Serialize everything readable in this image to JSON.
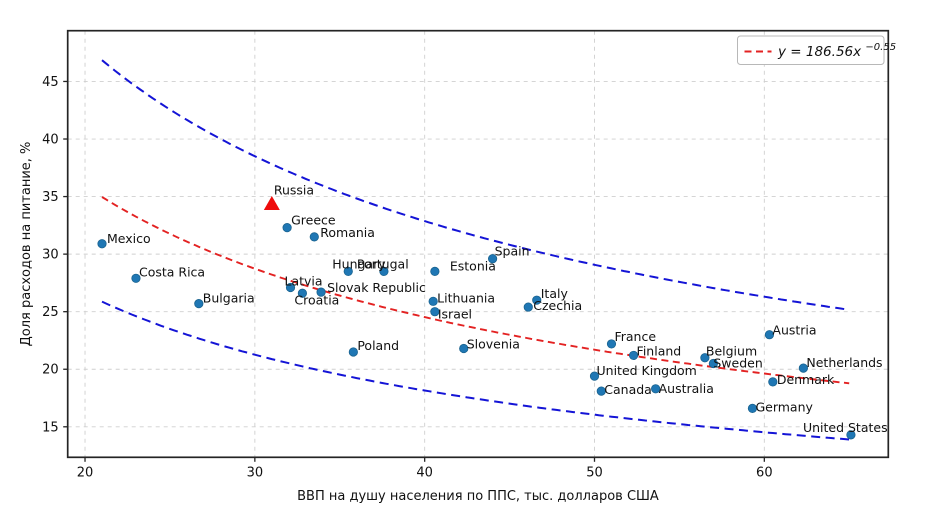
{
  "colors": {
    "point": "#1f77b4",
    "point_edge": "#1a638f",
    "highlight": "#ee0b0b",
    "trend": "#e32222",
    "band": "#1414d6",
    "grid": "#cfcfcf",
    "axis": "#242424",
    "text": "#111111"
  },
  "chart_data": {
    "type": "scatter",
    "title": "",
    "xlabel": "ВВП на душу населения по ППС, тыс. долларов США",
    "ylabel": "Доля расходов на питание, %",
    "xlim": [
      18.98,
      67.3
    ],
    "ylim": [
      12.35,
      49.41
    ],
    "x_ticks": [
      20,
      30,
      40,
      50,
      60
    ],
    "y_ticks": [
      15,
      20,
      25,
      30,
      35,
      40,
      45
    ],
    "grid": true,
    "legend_position": "upper right",
    "trend": {
      "type": "power",
      "a": 186.56,
      "b": -0.55,
      "x_start": 21,
      "x_end": 65,
      "legend_prefix": "y = 186.56x",
      "legend_exponent": "−0.55"
    },
    "bands": {
      "upper_factor": 1.34,
      "lower_factor": 0.74
    },
    "points": [
      {
        "label": "Mexico",
        "x": 21.0,
        "y": 30.9,
        "marker": "circle",
        "label_offset": [
          5,
          -1
        ],
        "anchor": "start"
      },
      {
        "label": "Costa Rica",
        "x": 23.0,
        "y": 27.9,
        "marker": "circle",
        "label_offset": [
          3,
          -2
        ],
        "anchor": "start"
      },
      {
        "label": "Bulgaria",
        "x": 26.7,
        "y": 25.7,
        "marker": "circle",
        "label_offset": [
          4,
          -1
        ],
        "anchor": "start"
      },
      {
        "label": "Russia",
        "x": 31.0,
        "y": 34.4,
        "marker": "triangle",
        "label_offset": [
          2,
          -9
        ],
        "anchor": "start"
      },
      {
        "label": "Greece",
        "x": 31.9,
        "y": 32.3,
        "marker": "circle",
        "label_offset": [
          4,
          -3
        ],
        "anchor": "start"
      },
      {
        "label": "Romania",
        "x": 33.5,
        "y": 31.5,
        "marker": "circle",
        "label_offset": [
          6,
          0
        ],
        "anchor": "start"
      },
      {
        "label": "Latvia",
        "x": 32.1,
        "y": 27.1,
        "marker": "circle",
        "label_offset": [
          -6,
          -2
        ],
        "anchor": "start"
      },
      {
        "label": "Croatia",
        "x": 32.8,
        "y": 26.6,
        "marker": "circle",
        "label_offset": [
          -8,
          11
        ],
        "anchor": "start"
      },
      {
        "label": "Slovak Republic",
        "x": 33.9,
        "y": 26.7,
        "marker": "circle",
        "label_offset": [
          6,
          0
        ],
        "anchor": "start"
      },
      {
        "label": "Hungary",
        "x": 35.5,
        "y": 28.5,
        "marker": "circle",
        "label_offset": [
          -16,
          -3
        ],
        "anchor": "start"
      },
      {
        "label": "Portugal",
        "x": 37.6,
        "y": 28.5,
        "marker": "circle",
        "label_offset": [
          -27,
          -3
        ],
        "anchor": "start"
      },
      {
        "label": "Estonia",
        "x": 40.6,
        "y": 28.5,
        "marker": "circle",
        "label_offset": [
          15,
          -1
        ],
        "anchor": "start"
      },
      {
        "label": "Spain",
        "x": 44.0,
        "y": 29.6,
        "marker": "circle",
        "label_offset": [
          2,
          -3
        ],
        "anchor": "start"
      },
      {
        "label": "Lithuania",
        "x": 40.5,
        "y": 25.9,
        "marker": "circle",
        "label_offset": [
          4,
          1
        ],
        "anchor": "start"
      },
      {
        "label": "Israel",
        "x": 40.6,
        "y": 25.0,
        "marker": "circle",
        "label_offset": [
          3,
          7
        ],
        "anchor": "start"
      },
      {
        "label": "Italy",
        "x": 46.6,
        "y": 26.0,
        "marker": "circle",
        "label_offset": [
          4,
          -2
        ],
        "anchor": "start"
      },
      {
        "label": "Czechia",
        "x": 46.1,
        "y": 25.4,
        "marker": "circle",
        "label_offset": [
          5,
          3
        ],
        "anchor": "start"
      },
      {
        "label": "Poland",
        "x": 35.8,
        "y": 21.5,
        "marker": "circle",
        "label_offset": [
          4,
          -2
        ],
        "anchor": "start"
      },
      {
        "label": "Slovenia",
        "x": 42.3,
        "y": 21.8,
        "marker": "circle",
        "label_offset": [
          3,
          0
        ],
        "anchor": "start"
      },
      {
        "label": "France",
        "x": 51.0,
        "y": 22.2,
        "marker": "circle",
        "label_offset": [
          3,
          -3
        ],
        "anchor": "start"
      },
      {
        "label": "Finland",
        "x": 52.3,
        "y": 21.2,
        "marker": "circle",
        "label_offset": [
          3,
          0
        ],
        "anchor": "start"
      },
      {
        "label": "United Kingdom",
        "x": 50.0,
        "y": 19.4,
        "marker": "circle",
        "label_offset": [
          2,
          -1
        ],
        "anchor": "start"
      },
      {
        "label": "Canada",
        "x": 50.4,
        "y": 18.1,
        "marker": "circle",
        "label_offset": [
          3,
          3
        ],
        "anchor": "start"
      },
      {
        "label": "Australia",
        "x": 53.6,
        "y": 18.3,
        "marker": "circle",
        "label_offset": [
          3,
          4
        ],
        "anchor": "start"
      },
      {
        "label": "Belgium",
        "x": 56.5,
        "y": 21.0,
        "marker": "circle",
        "label_offset": [
          1,
          -2
        ],
        "anchor": "start"
      },
      {
        "label": "Sweden",
        "x": 57.0,
        "y": 20.5,
        "marker": "circle",
        "label_offset": [
          0,
          4
        ],
        "anchor": "start"
      },
      {
        "label": "Austria",
        "x": 60.3,
        "y": 23.0,
        "marker": "circle",
        "label_offset": [
          3,
          0
        ],
        "anchor": "start"
      },
      {
        "label": "Netherlands",
        "x": 62.3,
        "y": 20.1,
        "marker": "circle",
        "label_offset": [
          3,
          -1
        ],
        "anchor": "start"
      },
      {
        "label": "Denmark",
        "x": 60.5,
        "y": 18.9,
        "marker": "circle",
        "label_offset": [
          4,
          2
        ],
        "anchor": "start"
      },
      {
        "label": "Germany",
        "x": 59.3,
        "y": 16.6,
        "marker": "circle",
        "label_offset": [
          3,
          3
        ],
        "anchor": "start"
      },
      {
        "label": "United States",
        "x": 65.1,
        "y": 14.3,
        "marker": "circle",
        "label_offset": [
          -48,
          -3
        ],
        "anchor": "start"
      }
    ]
  }
}
